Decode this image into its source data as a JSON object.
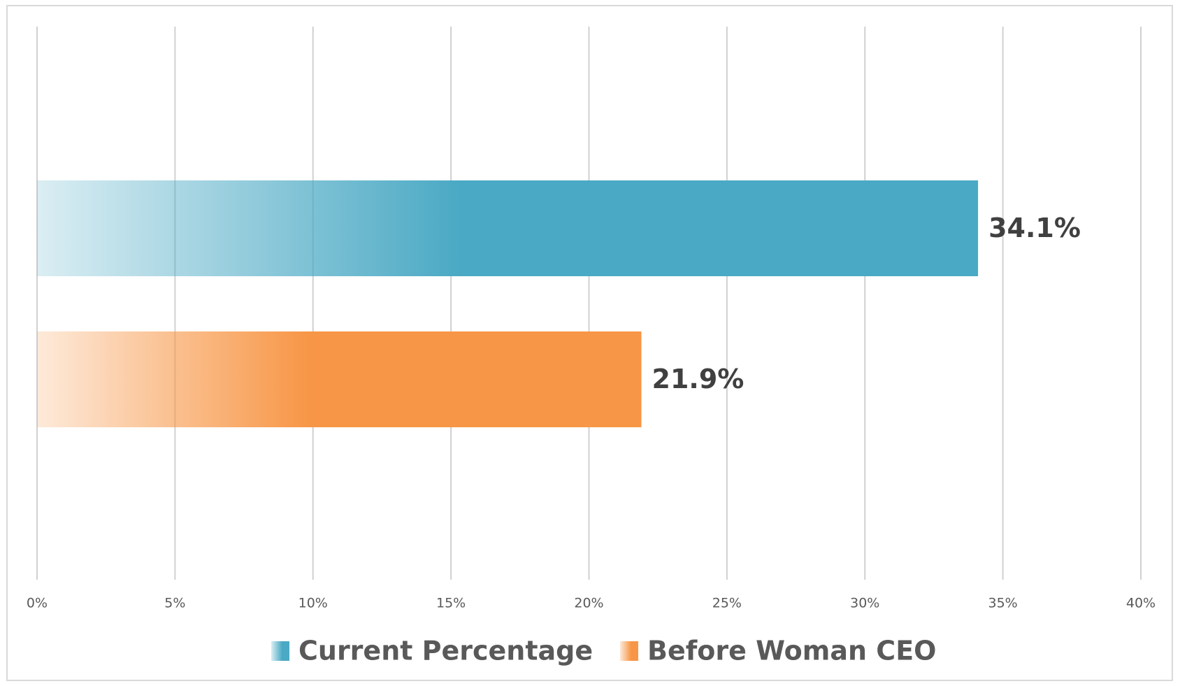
{
  "chart_data": {
    "type": "hbar",
    "series": [
      {
        "name": "Current Percentage",
        "color": "#4aa9c4",
        "values": [
          34.1
        ],
        "value_labels": [
          "34.1%"
        ]
      },
      {
        "name": "Before Woman CEO",
        "color": "#f79646",
        "values": [
          21.9
        ],
        "value_labels": [
          "21.9%"
        ]
      }
    ],
    "xlim": [
      0,
      40
    ],
    "xticks": [
      {
        "value": 0,
        "label": "0%"
      },
      {
        "value": 5,
        "label": "5%"
      },
      {
        "value": 10,
        "label": "10%"
      },
      {
        "value": 15,
        "label": "15%"
      },
      {
        "value": 20,
        "label": "20%"
      },
      {
        "value": 25,
        "label": "25%"
      },
      {
        "value": 30,
        "label": "30%"
      },
      {
        "value": 35,
        "label": "35%"
      },
      {
        "value": 40,
        "label": "40%"
      }
    ],
    "grid": true,
    "legend": "bottom"
  }
}
